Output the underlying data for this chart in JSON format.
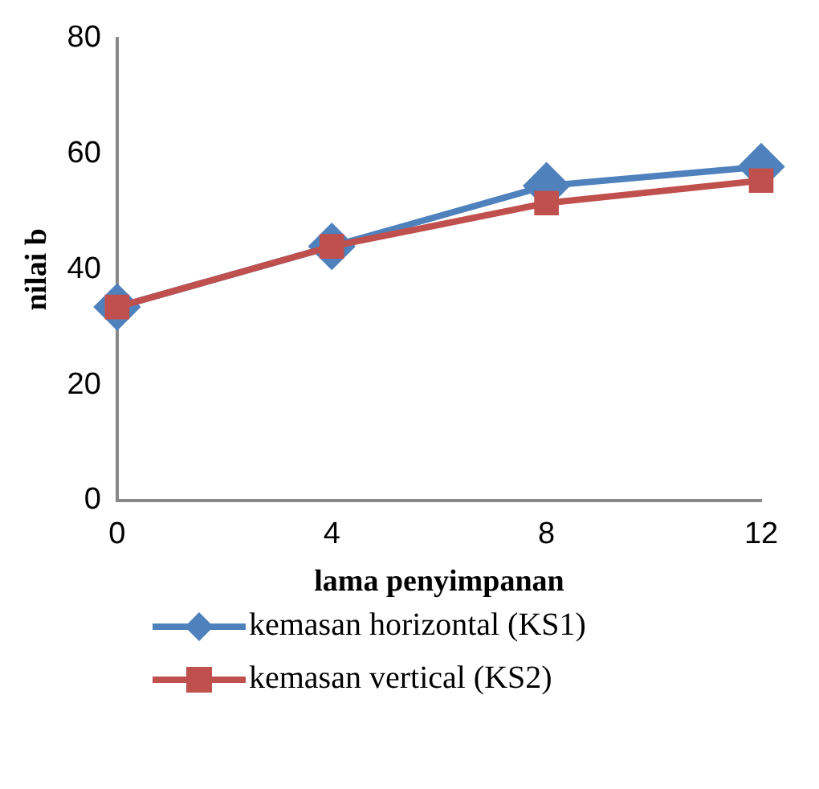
{
  "chart_data": {
    "type": "line",
    "xlabel": "lama penyimpanan",
    "ylabel": "nilai b",
    "x": [
      0,
      4,
      8,
      12
    ],
    "xlim": [
      0,
      12
    ],
    "xticks": [
      0,
      4,
      8,
      12
    ],
    "ylim": [
      0,
      80
    ],
    "yticks": [
      0,
      20,
      40,
      60,
      80
    ],
    "grid": false,
    "legend": "bottom",
    "series": [
      {
        "name": "kemasan horizontal (KS1)",
        "color": "#4f81bd",
        "marker": "diamond",
        "values": [
          33.5,
          44,
          54.5,
          57.8
        ]
      },
      {
        "name": "kemasan vertical (KS2)",
        "color": "#c0504d",
        "marker": "square",
        "values": [
          33.5,
          44,
          51.5,
          55.4
        ]
      }
    ]
  }
}
